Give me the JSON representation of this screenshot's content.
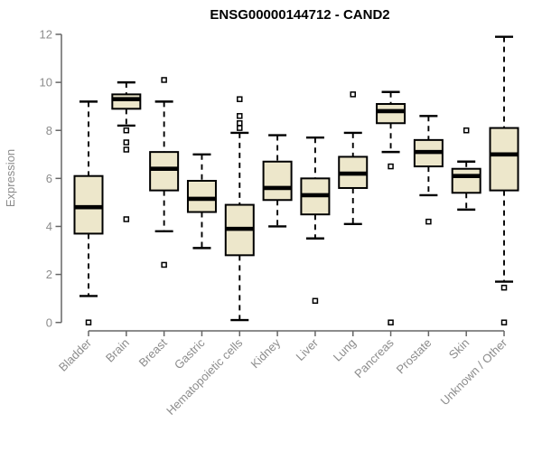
{
  "title": "ENSG00000144712 - CAND2",
  "chart_data": {
    "type": "boxplot",
    "title": "ENSG00000144712 - CAND2",
    "xlabel": "",
    "ylabel": "Expression",
    "ylim": [
      0,
      12
    ],
    "yticks": [
      0,
      2,
      4,
      6,
      8,
      10,
      12
    ],
    "grid": false,
    "legend": false,
    "categories": [
      "Bladder",
      "Brain",
      "Breast",
      "Gastric",
      "Hematopoietic cells",
      "Kidney",
      "Liver",
      "Lung",
      "Pancreas",
      "Prostate",
      "Skin",
      "Unknown / Other"
    ],
    "series": [
      {
        "name": "Bladder",
        "whisker_low": 1.1,
        "q1": 3.7,
        "median": 4.8,
        "q3": 6.1,
        "whisker_high": 9.2,
        "outliers": [
          0
        ]
      },
      {
        "name": "Brain",
        "whisker_low": 8.2,
        "q1": 8.9,
        "median": 9.3,
        "q3": 9.5,
        "whisker_high": 10.0,
        "outliers": [
          8.0,
          7.5,
          7.2,
          4.3
        ]
      },
      {
        "name": "Breast",
        "whisker_low": 3.8,
        "q1": 5.5,
        "median": 6.4,
        "q3": 7.1,
        "whisker_high": 9.2,
        "outliers": [
          10.1,
          2.4
        ]
      },
      {
        "name": "Gastric",
        "whisker_low": 3.1,
        "q1": 4.6,
        "median": 5.15,
        "q3": 5.9,
        "whisker_high": 7.0,
        "outliers": []
      },
      {
        "name": "Hematopoietic cells",
        "whisker_low": 0.1,
        "q1": 2.8,
        "median": 3.9,
        "q3": 4.9,
        "whisker_high": 7.9,
        "outliers": [
          9.3,
          8.6,
          8.3,
          8.1
        ]
      },
      {
        "name": "Kidney",
        "whisker_low": 4.0,
        "q1": 5.1,
        "median": 5.6,
        "q3": 6.7,
        "whisker_high": 7.8,
        "outliers": []
      },
      {
        "name": "Liver",
        "whisker_low": 3.5,
        "q1": 4.5,
        "median": 5.3,
        "q3": 6.0,
        "whisker_high": 7.7,
        "outliers": [
          0.9
        ]
      },
      {
        "name": "Lung",
        "whisker_low": 4.1,
        "q1": 5.6,
        "median": 6.2,
        "q3": 6.9,
        "whisker_high": 7.9,
        "outliers": [
          9.5
        ]
      },
      {
        "name": "Pancreas",
        "whisker_low": 7.1,
        "q1": 8.3,
        "median": 8.8,
        "q3": 9.1,
        "whisker_high": 9.6,
        "outliers": [
          6.5,
          0
        ]
      },
      {
        "name": "Prostate",
        "whisker_low": 5.3,
        "q1": 6.5,
        "median": 7.1,
        "q3": 7.6,
        "whisker_high": 8.6,
        "outliers": [
          4.2
        ]
      },
      {
        "name": "Skin",
        "whisker_low": 4.7,
        "q1": 5.4,
        "median": 6.1,
        "q3": 6.4,
        "whisker_high": 6.7,
        "outliers": [
          8.0
        ]
      },
      {
        "name": "Unknown / Other",
        "whisker_low": 1.7,
        "q1": 5.5,
        "median": 7.0,
        "q3": 8.1,
        "whisker_high": 11.9,
        "outliers": [
          1.45,
          0
        ]
      }
    ],
    "colors": {
      "box_fill": "#EDE7CB",
      "box_stroke": "#000000",
      "median_color": "#000000",
      "whisker_color": "#000000",
      "outlier_stroke": "#000000",
      "axis_color": "#666666",
      "tick_label_color": "#8C8C8C",
      "title_color": "#000000"
    }
  }
}
